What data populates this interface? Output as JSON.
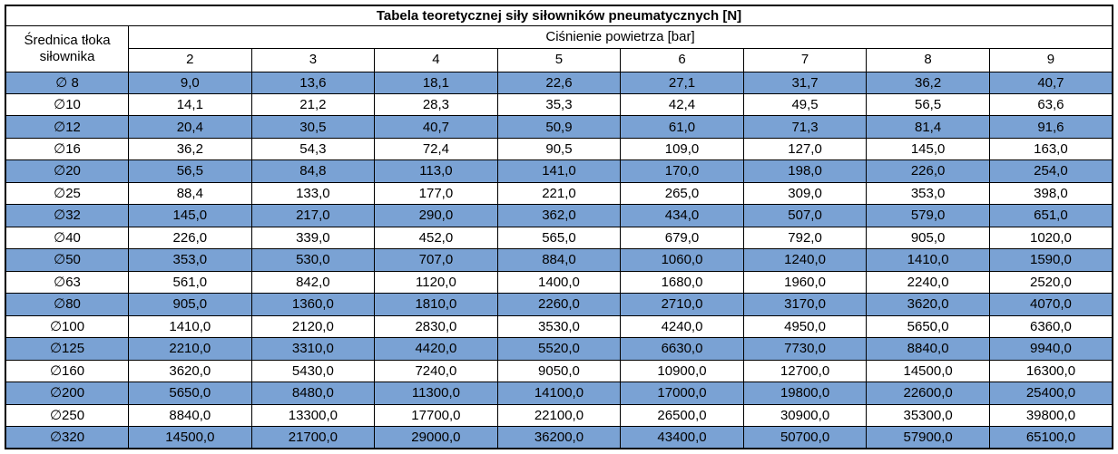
{
  "title": "Tabela teoretycznej siły siłowników pneumatycznych [N]",
  "colors": {
    "row_blue": "#7aa2d4",
    "row_white": "#ffffff",
    "border": "#000000",
    "text": "#000000"
  },
  "table": {
    "corner_header_line1": "Średnica tłoka",
    "corner_header_line2": "siłownika",
    "pressure_header": "Ciśnienie powietrza [bar]",
    "pressure_columns": [
      "2",
      "3",
      "4",
      "5",
      "6",
      "7",
      "8",
      "9"
    ],
    "rows": [
      {
        "diameter": "∅ 8",
        "values": [
          "9,0",
          "13,6",
          "18,1",
          "22,6",
          "27,1",
          "31,7",
          "36,2",
          "40,7"
        ]
      },
      {
        "diameter": "∅10",
        "values": [
          "14,1",
          "21,2",
          "28,3",
          "35,3",
          "42,4",
          "49,5",
          "56,5",
          "63,6"
        ]
      },
      {
        "diameter": "∅12",
        "values": [
          "20,4",
          "30,5",
          "40,7",
          "50,9",
          "61,0",
          "71,3",
          "81,4",
          "91,6"
        ]
      },
      {
        "diameter": "∅16",
        "values": [
          "36,2",
          "54,3",
          "72,4",
          "90,5",
          "109,0",
          "127,0",
          "145,0",
          "163,0"
        ]
      },
      {
        "diameter": "∅20",
        "values": [
          "56,5",
          "84,8",
          "113,0",
          "141,0",
          "170,0",
          "198,0",
          "226,0",
          "254,0"
        ]
      },
      {
        "diameter": "∅25",
        "values": [
          "88,4",
          "133,0",
          "177,0",
          "221,0",
          "265,0",
          "309,0",
          "353,0",
          "398,0"
        ]
      },
      {
        "diameter": "∅32",
        "values": [
          "145,0",
          "217,0",
          "290,0",
          "362,0",
          "434,0",
          "507,0",
          "579,0",
          "651,0"
        ]
      },
      {
        "diameter": "∅40",
        "values": [
          "226,0",
          "339,0",
          "452,0",
          "565,0",
          "679,0",
          "792,0",
          "905,0",
          "1020,0"
        ]
      },
      {
        "diameter": "∅50",
        "values": [
          "353,0",
          "530,0",
          "707,0",
          "884,0",
          "1060,0",
          "1240,0",
          "1410,0",
          "1590,0"
        ]
      },
      {
        "diameter": "∅63",
        "values": [
          "561,0",
          "842,0",
          "1120,0",
          "1400,0",
          "1680,0",
          "1960,0",
          "2240,0",
          "2520,0"
        ]
      },
      {
        "diameter": "∅80",
        "values": [
          "905,0",
          "1360,0",
          "1810,0",
          "2260,0",
          "2710,0",
          "3170,0",
          "3620,0",
          "4070,0"
        ]
      },
      {
        "diameter": "∅100",
        "values": [
          "1410,0",
          "2120,0",
          "2830,0",
          "3530,0",
          "4240,0",
          "4950,0",
          "5650,0",
          "6360,0"
        ]
      },
      {
        "diameter": "∅125",
        "values": [
          "2210,0",
          "3310,0",
          "4420,0",
          "5520,0",
          "6630,0",
          "7730,0",
          "8840,0",
          "9940,0"
        ]
      },
      {
        "diameter": "∅160",
        "values": [
          "3620,0",
          "5430,0",
          "7240,0",
          "9050,0",
          "10900,0",
          "12700,0",
          "14500,0",
          "16300,0"
        ]
      },
      {
        "diameter": "∅200",
        "values": [
          "5650,0",
          "8480,0",
          "11300,0",
          "14100,0",
          "17000,0",
          "19800,0",
          "22600,0",
          "25400,0"
        ]
      },
      {
        "diameter": "∅250",
        "values": [
          "8840,0",
          "13300,0",
          "17700,0",
          "22100,0",
          "26500,0",
          "30900,0",
          "35300,0",
          "39800,0"
        ]
      },
      {
        "diameter": "∅320",
        "values": [
          "14500,0",
          "21700,0",
          "29000,0",
          "36200,0",
          "43400,0",
          "50700,0",
          "57900,0",
          "65100,0"
        ]
      }
    ]
  }
}
